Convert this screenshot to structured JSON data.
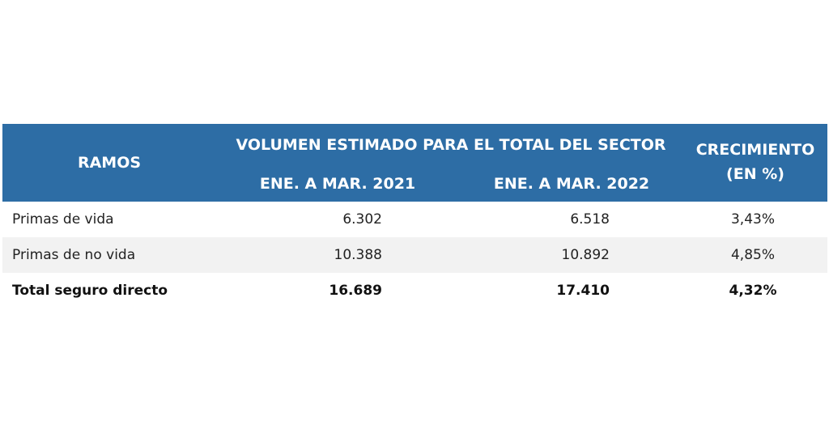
{
  "table": {
    "header": {
      "ramos": "RAMOS",
      "volumen": "VOLUMEN ESTIMADO PARA EL TOTAL DEL SECTOR",
      "periods": [
        "ENE. A MAR. 2021",
        "ENE. A MAR. 2022"
      ],
      "crecimiento": [
        "CRECIMIENTO",
        "(EN %)"
      ]
    },
    "rows": [
      [
        "Primas de vida",
        "6.302",
        "6.518",
        "3,43%"
      ],
      [
        "Primas de no vida",
        "10.388",
        "10.892",
        "4,85%"
      ],
      [
        "Total seguro directo",
        "16.689",
        "17.410",
        "4,32%"
      ]
    ]
  }
}
